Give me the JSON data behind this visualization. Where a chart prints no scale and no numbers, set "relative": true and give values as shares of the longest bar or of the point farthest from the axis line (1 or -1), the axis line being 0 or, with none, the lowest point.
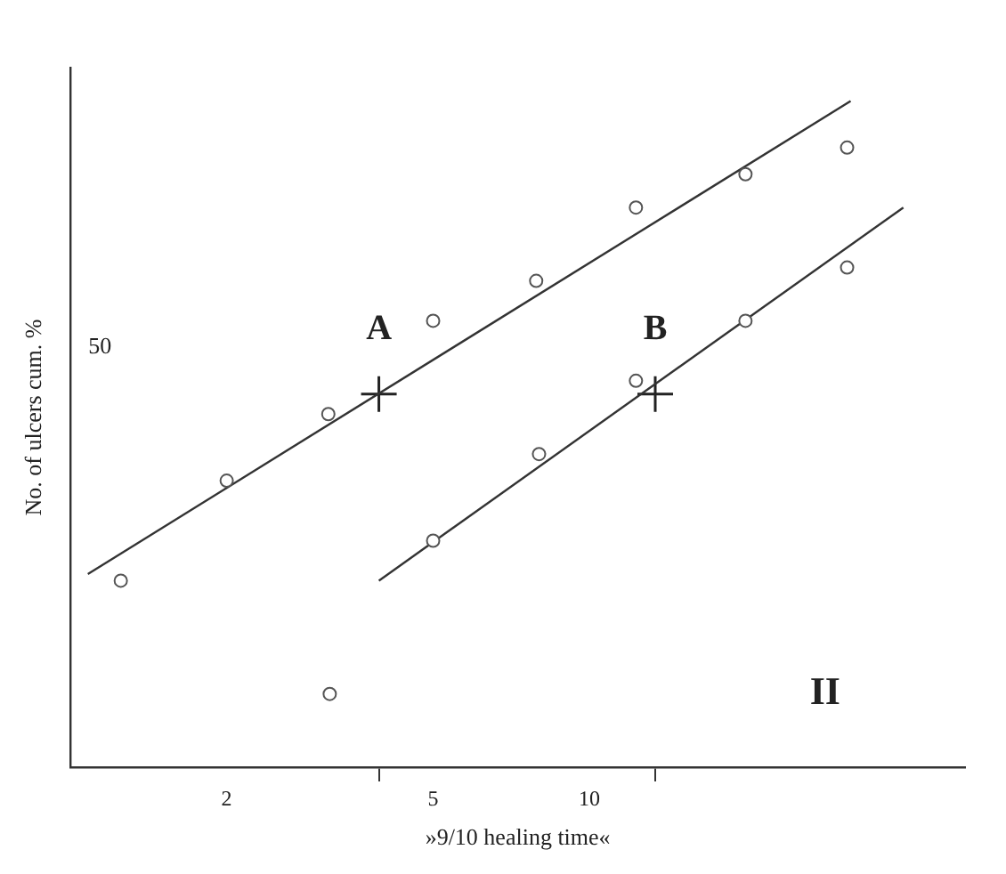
{
  "chart_data": {
    "type": "scatter",
    "xlabel": "»9/10 healing time«",
    "ylabel": "No. of ulcers cum. %",
    "relative": true,
    "log": "x",
    "xlim": [
      1,
      53
    ],
    "xticks": [
      2,
      5,
      10,
      {
        "value": 3.93,
        "label": null
      },
      {
        "value": 13.4,
        "label": null
      }
    ],
    "grid": false,
    "legend": false,
    "series": [
      {
        "marker": "circle",
        "color": "#555555",
        "x": [
          1.25,
          2.0,
          3.14,
          5.0,
          7.9,
          12.3,
          20,
          31.4
        ],
        "values": [
          0.28,
          0.43,
          0.53,
          0.67,
          0.73,
          0.84,
          0.89,
          0.93
        ]
      },
      {
        "marker": "circle",
        "color": "#555555",
        "x": [
          3.16,
          5.0,
          8.0,
          12.3,
          20,
          31.4
        ],
        "values": [
          0.11,
          0.34,
          0.47,
          0.58,
          0.67,
          0.75
        ]
      },
      {
        "type": "line",
        "marker": "none",
        "line_style": "solid",
        "color": "#333333",
        "x": [
          1.08,
          31.9
        ],
        "values": [
          0.29,
          1.0
        ]
      },
      {
        "type": "line",
        "marker": "none",
        "line_style": "solid",
        "color": "#333333",
        "x": [
          3.93,
          40.3
        ],
        "values": [
          0.28,
          0.84
        ]
      },
      {
        "marker": "cross",
        "name": "A",
        "color": "#222222",
        "x": [
          3.93
        ],
        "values": [
          0.56
        ]
      },
      {
        "marker": "cross",
        "name": "B",
        "color": "#222222",
        "x": [
          13.4
        ],
        "values": [
          0.56
        ]
      }
    ],
    "annotations": [
      "50",
      "II"
    ]
  }
}
